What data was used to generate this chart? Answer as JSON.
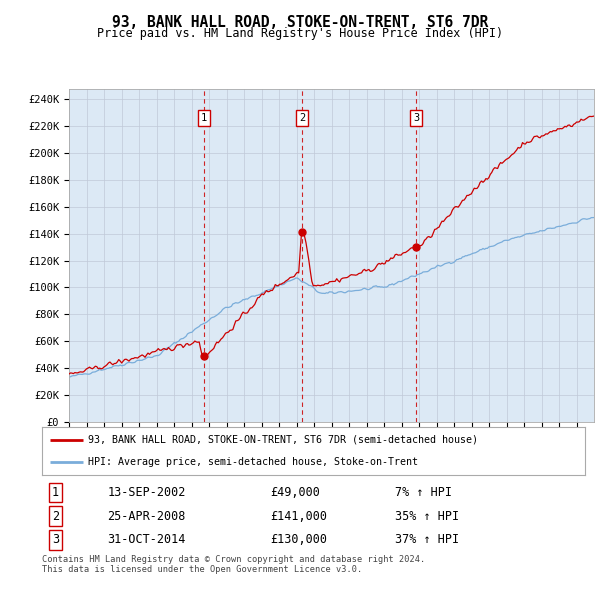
{
  "title": "93, BANK HALL ROAD, STOKE-ON-TRENT, ST6 7DR",
  "subtitle": "Price paid vs. HM Land Registry's House Price Index (HPI)",
  "plot_bg_color": "#dce9f5",
  "ylabel_ticks": [
    "£0",
    "£20K",
    "£40K",
    "£60K",
    "£80K",
    "£100K",
    "£120K",
    "£140K",
    "£160K",
    "£180K",
    "£200K",
    "£220K",
    "£240K"
  ],
  "ytick_values": [
    0,
    20000,
    40000,
    60000,
    80000,
    100000,
    120000,
    140000,
    160000,
    180000,
    200000,
    220000,
    240000
  ],
  "ylim": [
    0,
    248000
  ],
  "xlim_start": 1995.0,
  "xlim_end": 2024.99,
  "sale_color": "#cc0000",
  "hpi_color": "#7aadda",
  "vline_color": "#cc0000",
  "sale_dates_num": [
    2002.7,
    2008.32,
    2014.83
  ],
  "sale_prices": [
    49000,
    141000,
    130000
  ],
  "sale_labels": [
    "1",
    "2",
    "3"
  ],
  "legend_sale_label": "93, BANK HALL ROAD, STOKE-ON-TRENT, ST6 7DR (semi-detached house)",
  "legend_hpi_label": "HPI: Average price, semi-detached house, Stoke-on-Trent",
  "transactions": [
    {
      "num": "1",
      "date": "13-SEP-2002",
      "price": "£49,000",
      "hpi": "7% ↑ HPI"
    },
    {
      "num": "2",
      "date": "25-APR-2008",
      "price": "£141,000",
      "hpi": "35% ↑ HPI"
    },
    {
      "num": "3",
      "date": "31-OCT-2014",
      "price": "£130,000",
      "hpi": "37% ↑ HPI"
    }
  ],
  "footer_line1": "Contains HM Land Registry data © Crown copyright and database right 2024.",
  "footer_line2": "This data is licensed under the Open Government Licence v3.0."
}
